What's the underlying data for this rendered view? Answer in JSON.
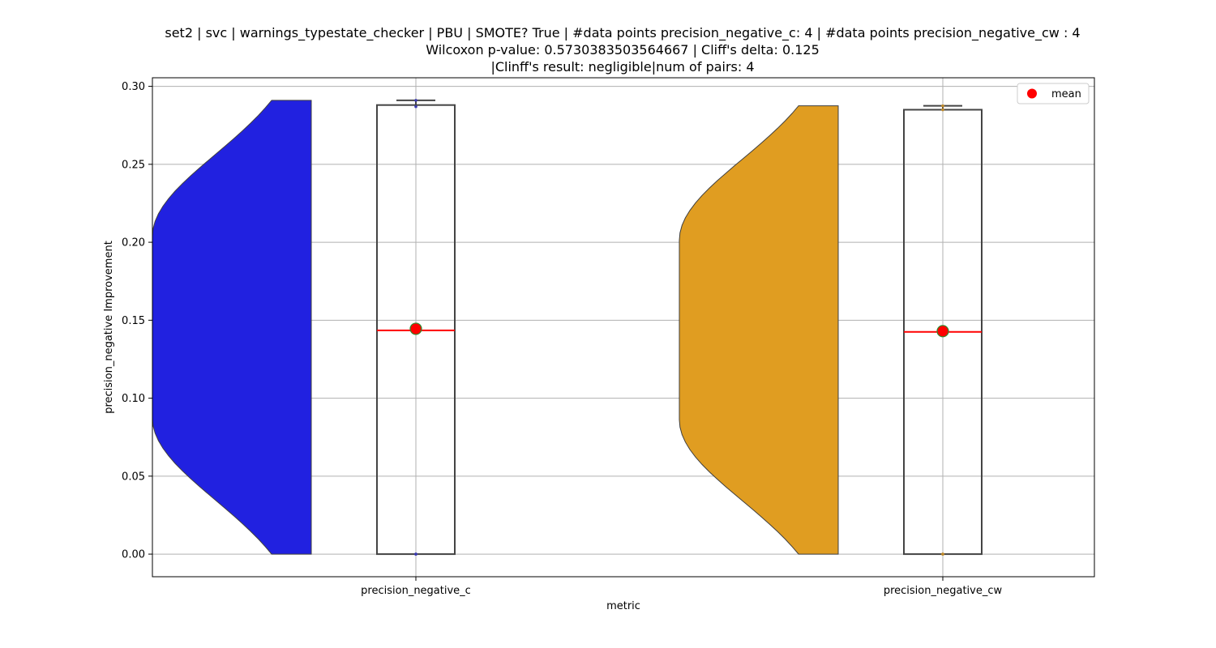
{
  "chart_data": {
    "type": "violin+box",
    "title_lines": [
      "set2 | svc | warnings_typestate_checker | PBU | SMOTE? True | #data points precision_negative_c: 4 | #data points precision_negative_cw : 4",
      "Wilcoxon p-value: 0.5730383503564667 | Cliff's delta: 0.125",
      "|Clinff's result: negligible|num of pairs: 4"
    ],
    "xlabel": "metric",
    "ylabel": "precision_negative Improvement",
    "categories": [
      "precision_negative_c",
      "precision_negative_cw"
    ],
    "ylim": [
      -0.0145,
      0.3055
    ],
    "yticks": [
      0.0,
      0.05,
      0.1,
      0.15,
      0.2,
      0.25,
      0.3
    ],
    "ytick_labels": [
      "0.00",
      "0.05",
      "0.10",
      "0.15",
      "0.20",
      "0.25",
      "0.30"
    ],
    "grid": true,
    "legend": {
      "position": "top-right",
      "entries": [
        {
          "label": "mean",
          "marker": "circle",
          "color": "#ff0000"
        }
      ]
    },
    "series": [
      {
        "name": "precision_negative_c",
        "violin_color": "#2121e0",
        "violin_range": [
          0.0,
          0.291
        ],
        "box": {
          "min": 0.0,
          "q1": 0.0,
          "median": 0.1435,
          "q3": 0.288,
          "max": 0.291
        },
        "mean": 0.1445,
        "points": [
          0.0,
          0.0,
          0.287,
          0.291
        ]
      },
      {
        "name": "precision_negative_cw",
        "violin_color": "#e09d21",
        "violin_range": [
          0.0,
          0.2875
        ],
        "box": {
          "min": 0.0,
          "q1": 0.0,
          "median": 0.1425,
          "q3": 0.285,
          "max": 0.2875
        },
        "mean": 0.143,
        "points": [
          0.0,
          0.0,
          0.285,
          0.2875
        ]
      }
    ],
    "colors": {
      "median": "#ff0000",
      "mean_fill": "#ff0000",
      "mean_edge": "#2e8b2e",
      "box_edge": "#444444",
      "grid": "#b0b0b0"
    }
  }
}
